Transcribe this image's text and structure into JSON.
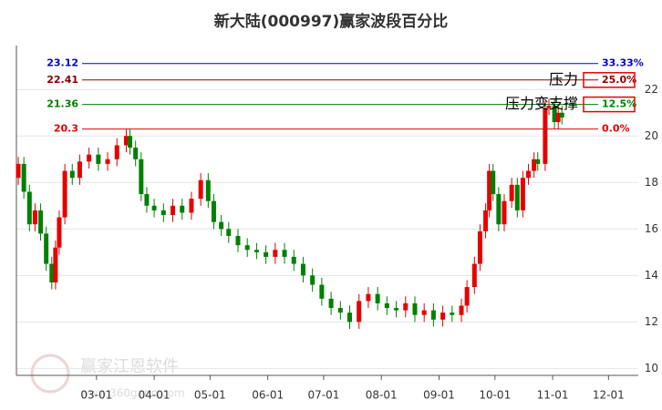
{
  "chart_data": {
    "type": "candlestick",
    "title": "新大陆(000997)赢家波段百分比",
    "x": [
      17,
      20,
      23,
      26,
      29,
      32,
      35,
      37,
      39,
      42,
      46,
      50,
      55,
      60,
      65,
      70,
      75,
      77,
      80,
      83,
      86,
      90,
      95,
      100,
      105,
      110,
      115,
      119,
      122,
      126,
      130,
      135,
      140,
      145,
      150,
      155,
      160,
      165,
      170,
      175,
      180,
      185,
      190,
      195,
      200,
      205,
      210,
      215,
      220,
      225,
      230,
      235,
      240,
      245,
      250,
      255,
      258,
      262,
      265,
      268,
      270,
      272,
      275,
      278,
      282,
      285,
      288,
      291,
      294,
      296,
      300,
      302,
      305,
      307,
      309
    ],
    "open": [
      18.2,
      18.8,
      17.6,
      16.2,
      16.8,
      15.8,
      14.5,
      13.7,
      15.2,
      16.5,
      18.5,
      18.2,
      18.9,
      19.2,
      18.8,
      19.0,
      19.6,
      20.0,
      19.5,
      19.0,
      17.5,
      17.0,
      16.8,
      16.6,
      17.0,
      16.7,
      17.3,
      18.1,
      17.2,
      16.3,
      16.0,
      15.7,
      15.3,
      15.1,
      15.0,
      14.8,
      15.1,
      14.8,
      14.5,
      14.0,
      13.6,
      13.0,
      12.6,
      12.4,
      12.0,
      12.9,
      13.2,
      12.8,
      12.6,
      12.5,
      12.8,
      12.3,
      12.5,
      12.1,
      12.4,
      12.3,
      12.7,
      13.5,
      14.5,
      15.9,
      16.8,
      18.5,
      17.5,
      16.2,
      17.2,
      17.9,
      16.8,
      18.2,
      18.5,
      19.0,
      18.8,
      21.2,
      21.3,
      20.6,
      21.0
    ],
    "high": [
      19.1,
      19.1,
      17.9,
      17.1,
      17.1,
      16.1,
      14.8,
      15.5,
      16.8,
      18.8,
      18.8,
      19.2,
      19.5,
      19.5,
      19.3,
      19.9,
      20.3,
      20.3,
      19.8,
      19.3,
      17.8,
      17.3,
      17.1,
      17.3,
      17.3,
      17.6,
      18.4,
      18.4,
      17.5,
      16.6,
      16.3,
      16.0,
      15.6,
      15.4,
      15.3,
      15.4,
      15.4,
      15.1,
      14.8,
      14.3,
      13.9,
      13.3,
      12.9,
      12.7,
      13.2,
      13.5,
      13.5,
      13.1,
      12.9,
      13.1,
      13.1,
      12.8,
      12.8,
      12.7,
      12.7,
      13.0,
      13.8,
      14.8,
      16.2,
      17.1,
      18.8,
      18.8,
      17.8,
      17.5,
      18.2,
      18.2,
      18.5,
      18.8,
      19.3,
      19.3,
      21.5,
      21.6,
      21.6,
      21.3,
      21.3
    ],
    "low": [
      17.9,
      17.3,
      15.9,
      15.9,
      15.5,
      14.2,
      13.4,
      13.4,
      14.9,
      16.2,
      17.9,
      17.9,
      18.6,
      18.5,
      18.5,
      18.7,
      19.3,
      19.2,
      18.7,
      17.2,
      16.7,
      16.5,
      16.3,
      16.3,
      16.4,
      16.4,
      17.0,
      16.9,
      16.0,
      15.7,
      15.4,
      15.0,
      14.8,
      14.7,
      14.5,
      14.5,
      14.5,
      14.2,
      13.7,
      13.3,
      12.7,
      12.3,
      12.1,
      11.7,
      11.7,
      12.6,
      12.5,
      12.3,
      12.2,
      12.2,
      12.0,
      12.0,
      11.8,
      11.8,
      12.0,
      12.0,
      12.4,
      13.2,
      14.2,
      15.6,
      16.5,
      17.2,
      15.9,
      15.9,
      16.9,
      16.5,
      16.5,
      17.9,
      18.2,
      18.5,
      18.5,
      20.9,
      20.3,
      20.3,
      20.5
    ],
    "close": [
      18.8,
      17.6,
      16.2,
      16.8,
      15.8,
      14.5,
      13.7,
      15.2,
      16.5,
      18.5,
      18.2,
      18.9,
      19.2,
      18.8,
      19.0,
      19.6,
      20.0,
      19.5,
      19.0,
      17.5,
      17.0,
      16.8,
      16.6,
      17.0,
      16.7,
      17.3,
      18.1,
      17.2,
      16.3,
      16.0,
      15.7,
      15.3,
      15.1,
      15.0,
      14.8,
      15.1,
      14.8,
      14.5,
      14.0,
      13.6,
      13.0,
      12.6,
      12.4,
      12.0,
      12.9,
      13.2,
      12.8,
      12.6,
      12.5,
      12.8,
      12.3,
      12.5,
      12.1,
      12.4,
      12.3,
      12.7,
      13.5,
      14.5,
      15.9,
      16.8,
      18.5,
      17.5,
      16.2,
      17.2,
      17.9,
      16.8,
      18.2,
      18.5,
      19.0,
      18.8,
      21.2,
      21.3,
      20.6,
      21.0,
      20.8
    ],
    "up_color": "#e60000",
    "down_color": "#008000",
    "xlim": [
      16,
      350
    ],
    "xticks": [
      {
        "value": 59,
        "label": "03-01"
      },
      {
        "value": 90,
        "label": "04-01"
      },
      {
        "value": 120,
        "label": "05-01"
      },
      {
        "value": 151,
        "label": "06-01"
      },
      {
        "value": 181,
        "label": "07-01"
      },
      {
        "value": 212,
        "label": "08-01"
      },
      {
        "value": 243,
        "label": "09-01"
      },
      {
        "value": 273,
        "label": "10-01"
      },
      {
        "value": 304,
        "label": "11-01"
      },
      {
        "value": 334,
        "label": "12-01"
      }
    ],
    "ylim": [
      9.7,
      23.5
    ],
    "yticks": [
      10,
      12,
      14,
      16,
      18,
      20,
      22
    ],
    "grid": true,
    "levels": {
      "values": [
        23.12,
        22.41,
        21.36,
        20.3
      ],
      "percent_labels": [
        "33.33%",
        "25.0%",
        "12.5%",
        "0.0%"
      ],
      "colors": [
        "#0000cc",
        "#8b0000",
        "#008000",
        "#e60000"
      ]
    },
    "annotations": [
      "压力",
      "压力变支撑"
    ],
    "watermark": [
      "赢家江恩软件",
      "www.360gann.com"
    ]
  }
}
